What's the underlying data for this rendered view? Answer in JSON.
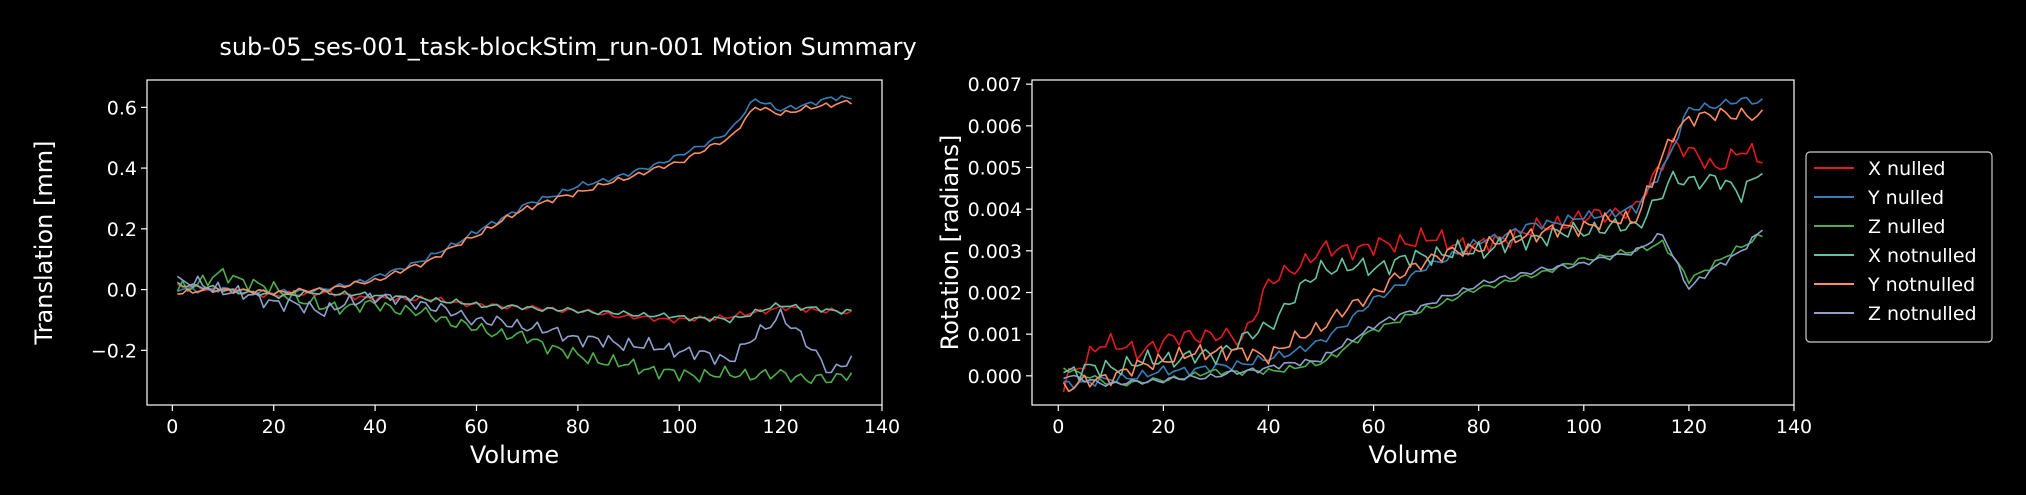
{
  "title": "sub-05_ses-001_task-blockStim_run-001 Motion Summary",
  "chart_data": [
    {
      "type": "line",
      "xlabel": "Volume",
      "ylabel": "Translation [mm]",
      "xlim": [
        -5,
        140
      ],
      "ylim": [
        -0.38,
        0.69
      ],
      "xticks": [
        0,
        20,
        40,
        60,
        80,
        100,
        120,
        140
      ],
      "yticks": [
        -0.2,
        0.0,
        0.2,
        0.4,
        0.6
      ],
      "ytick_labels": [
        "−0.2",
        "0.0",
        "0.2",
        "0.4",
        "0.6"
      ],
      "series": [
        {
          "name": "X nulled",
          "color": "#e41a1c",
          "wave": 0.012,
          "points": [
            [
              1,
              0.01
            ],
            [
              10,
              0.0
            ],
            [
              20,
              -0.02
            ],
            [
              30,
              -0.01
            ],
            [
              40,
              -0.03
            ],
            [
              50,
              -0.03
            ],
            [
              60,
              -0.05
            ],
            [
              70,
              -0.06
            ],
            [
              80,
              -0.07
            ],
            [
              90,
              -0.09
            ],
            [
              100,
              -0.1
            ],
            [
              110,
              -0.09
            ],
            [
              120,
              -0.06
            ],
            [
              130,
              -0.07
            ],
            [
              134,
              -0.08
            ]
          ]
        },
        {
          "name": "Y nulled",
          "color": "#377eb8",
          "wave": 0.012,
          "points": [
            [
              1,
              0.0
            ],
            [
              10,
              0.0
            ],
            [
              20,
              -0.01
            ],
            [
              30,
              0.0
            ],
            [
              40,
              0.04
            ],
            [
              50,
              0.1
            ],
            [
              60,
              0.19
            ],
            [
              70,
              0.28
            ],
            [
              80,
              0.34
            ],
            [
              90,
              0.38
            ],
            [
              100,
              0.44
            ],
            [
              110,
              0.52
            ],
            [
              115,
              0.63
            ],
            [
              120,
              0.59
            ],
            [
              130,
              0.63
            ],
            [
              134,
              0.63
            ]
          ]
        },
        {
          "name": "Z nulled",
          "color": "#4daf4a",
          "wave": 0.03,
          "points": [
            [
              1,
              0.0
            ],
            [
              10,
              0.05
            ],
            [
              20,
              0.0
            ],
            [
              30,
              -0.06
            ],
            [
              40,
              -0.05
            ],
            [
              50,
              -0.08
            ],
            [
              60,
              -0.13
            ],
            [
              70,
              -0.16
            ],
            [
              80,
              -0.22
            ],
            [
              90,
              -0.25
            ],
            [
              100,
              -0.28
            ],
            [
              110,
              -0.28
            ],
            [
              120,
              -0.28
            ],
            [
              130,
              -0.3
            ],
            [
              134,
              -0.27
            ]
          ]
        },
        {
          "name": "X notnulled",
          "color": "#66c2a5",
          "wave": 0.012,
          "points": [
            [
              1,
              0.02
            ],
            [
              10,
              0.0
            ],
            [
              20,
              -0.02
            ],
            [
              30,
              -0.01
            ],
            [
              40,
              -0.02
            ],
            [
              50,
              -0.03
            ],
            [
              60,
              -0.05
            ],
            [
              70,
              -0.06
            ],
            [
              80,
              -0.07
            ],
            [
              90,
              -0.08
            ],
            [
              100,
              -0.09
            ],
            [
              110,
              -0.1
            ],
            [
              120,
              -0.05
            ],
            [
              130,
              -0.07
            ],
            [
              134,
              -0.07
            ]
          ]
        },
        {
          "name": "Y notnulled",
          "color": "#fc8d62",
          "wave": 0.012,
          "points": [
            [
              1,
              -0.01
            ],
            [
              10,
              0.0
            ],
            [
              20,
              -0.01
            ],
            [
              30,
              0.0
            ],
            [
              40,
              0.03
            ],
            [
              50,
              0.09
            ],
            [
              60,
              0.18
            ],
            [
              70,
              0.27
            ],
            [
              80,
              0.32
            ],
            [
              90,
              0.37
            ],
            [
              100,
              0.42
            ],
            [
              110,
              0.5
            ],
            [
              115,
              0.6
            ],
            [
              120,
              0.58
            ],
            [
              130,
              0.61
            ],
            [
              134,
              0.62
            ]
          ]
        },
        {
          "name": "Z notnulled",
          "color": "#8da0cb",
          "wave": 0.03,
          "points": [
            [
              1,
              0.03
            ],
            [
              10,
              0.0
            ],
            [
              20,
              -0.04
            ],
            [
              30,
              -0.07
            ],
            [
              40,
              -0.02
            ],
            [
              50,
              -0.05
            ],
            [
              60,
              -0.1
            ],
            [
              70,
              -0.12
            ],
            [
              80,
              -0.16
            ],
            [
              90,
              -0.18
            ],
            [
              100,
              -0.2
            ],
            [
              110,
              -0.23
            ],
            [
              120,
              -0.08
            ],
            [
              130,
              -0.27
            ],
            [
              134,
              -0.23
            ]
          ]
        }
      ]
    },
    {
      "type": "line",
      "xlabel": "Volume",
      "ylabel": "Rotation [radians]",
      "xlim": [
        -5,
        140
      ],
      "ylim": [
        -0.0007,
        0.0071
      ],
      "xticks": [
        0,
        20,
        40,
        60,
        80,
        100,
        120,
        140
      ],
      "yticks": [
        0.0,
        0.001,
        0.002,
        0.003,
        0.004,
        0.005,
        0.006,
        0.007
      ],
      "ytick_labels": [
        "0.000",
        "0.001",
        "0.002",
        "0.003",
        "0.004",
        "0.005",
        "0.006",
        "0.007"
      ],
      "legend": {
        "location": "right-outside"
      },
      "series": [
        {
          "name": "X nulled",
          "color": "#e41a1c",
          "wave": 0.0003,
          "points": [
            [
              1,
              -0.0002
            ],
            [
              8,
              0.0008
            ],
            [
              15,
              0.0006
            ],
            [
              25,
              0.001
            ],
            [
              35,
              0.0009
            ],
            [
              40,
              0.0022
            ],
            [
              50,
              0.003
            ],
            [
              60,
              0.0031
            ],
            [
              70,
              0.0033
            ],
            [
              80,
              0.0031
            ],
            [
              90,
              0.0035
            ],
            [
              100,
              0.0038
            ],
            [
              110,
              0.004
            ],
            [
              117,
              0.0056
            ],
            [
              125,
              0.005
            ],
            [
              130,
              0.0054
            ],
            [
              134,
              0.0052
            ]
          ]
        },
        {
          "name": "Y nulled",
          "color": "#377eb8",
          "wave": 0.00015,
          "points": [
            [
              1,
              -0.0002
            ],
            [
              10,
              -0.0001
            ],
            [
              20,
              0.0001
            ],
            [
              30,
              0.0002
            ],
            [
              40,
              0.0004
            ],
            [
              50,
              0.0008
            ],
            [
              60,
              0.0018
            ],
            [
              70,
              0.0026
            ],
            [
              80,
              0.0032
            ],
            [
              90,
              0.0036
            ],
            [
              100,
              0.0038
            ],
            [
              110,
              0.004
            ],
            [
              116,
              0.0052
            ],
            [
              120,
              0.0064
            ],
            [
              130,
              0.0066
            ],
            [
              134,
              0.0066
            ]
          ]
        },
        {
          "name": "Z nulled",
          "color": "#4daf4a",
          "wave": 0.0001,
          "points": [
            [
              1,
              0.0002
            ],
            [
              10,
              -0.0002
            ],
            [
              20,
              -0.0001
            ],
            [
              30,
              0.0001
            ],
            [
              40,
              0.0001
            ],
            [
              50,
              0.0003
            ],
            [
              60,
              0.0011
            ],
            [
              70,
              0.0016
            ],
            [
              80,
              0.0021
            ],
            [
              90,
              0.0024
            ],
            [
              100,
              0.0028
            ],
            [
              110,
              0.003
            ],
            [
              115,
              0.0032
            ],
            [
              120,
              0.0023
            ],
            [
              125,
              0.0027
            ],
            [
              130,
              0.0031
            ],
            [
              134,
              0.0034
            ]
          ]
        },
        {
          "name": "X notnulled",
          "color": "#66c2a5",
          "wave": 0.0003,
          "points": [
            [
              1,
              0.0001
            ],
            [
              10,
              0.0002
            ],
            [
              20,
              0.0004
            ],
            [
              30,
              0.0005
            ],
            [
              40,
              0.0012
            ],
            [
              50,
              0.0026
            ],
            [
              60,
              0.0026
            ],
            [
              70,
              0.0029
            ],
            [
              80,
              0.003
            ],
            [
              90,
              0.0033
            ],
            [
              100,
              0.0035
            ],
            [
              110,
              0.0036
            ],
            [
              117,
              0.0047
            ],
            [
              125,
              0.0047
            ],
            [
              130,
              0.0044
            ],
            [
              134,
              0.005
            ]
          ]
        },
        {
          "name": "Y notnulled",
          "color": "#fc8d62",
          "wave": 0.00025,
          "points": [
            [
              1,
              -0.0003
            ],
            [
              10,
              0.0
            ],
            [
              20,
              0.0004
            ],
            [
              30,
              0.0006
            ],
            [
              40,
              0.0005
            ],
            [
              50,
              0.0012
            ],
            [
              60,
              0.002
            ],
            [
              70,
              0.0028
            ],
            [
              80,
              0.0031
            ],
            [
              90,
              0.0034
            ],
            [
              100,
              0.0036
            ],
            [
              110,
              0.0038
            ],
            [
              117,
              0.0058
            ],
            [
              120,
              0.0062
            ],
            [
              130,
              0.0063
            ],
            [
              134,
              0.0062
            ]
          ]
        },
        {
          "name": "Z notnulled",
          "color": "#8da0cb",
          "wave": 0.0001,
          "points": [
            [
              1,
              0.0
            ],
            [
              10,
              -0.0002
            ],
            [
              20,
              -0.0001
            ],
            [
              30,
              0.0
            ],
            [
              40,
              0.0002
            ],
            [
              50,
              0.0004
            ],
            [
              60,
              0.0012
            ],
            [
              70,
              0.0017
            ],
            [
              80,
              0.0022
            ],
            [
              90,
              0.0025
            ],
            [
              100,
              0.0027
            ],
            [
              110,
              0.003
            ],
            [
              115,
              0.0034
            ],
            [
              120,
              0.0021
            ],
            [
              125,
              0.0026
            ],
            [
              130,
              0.003
            ],
            [
              134,
              0.0035
            ]
          ]
        }
      ]
    }
  ]
}
